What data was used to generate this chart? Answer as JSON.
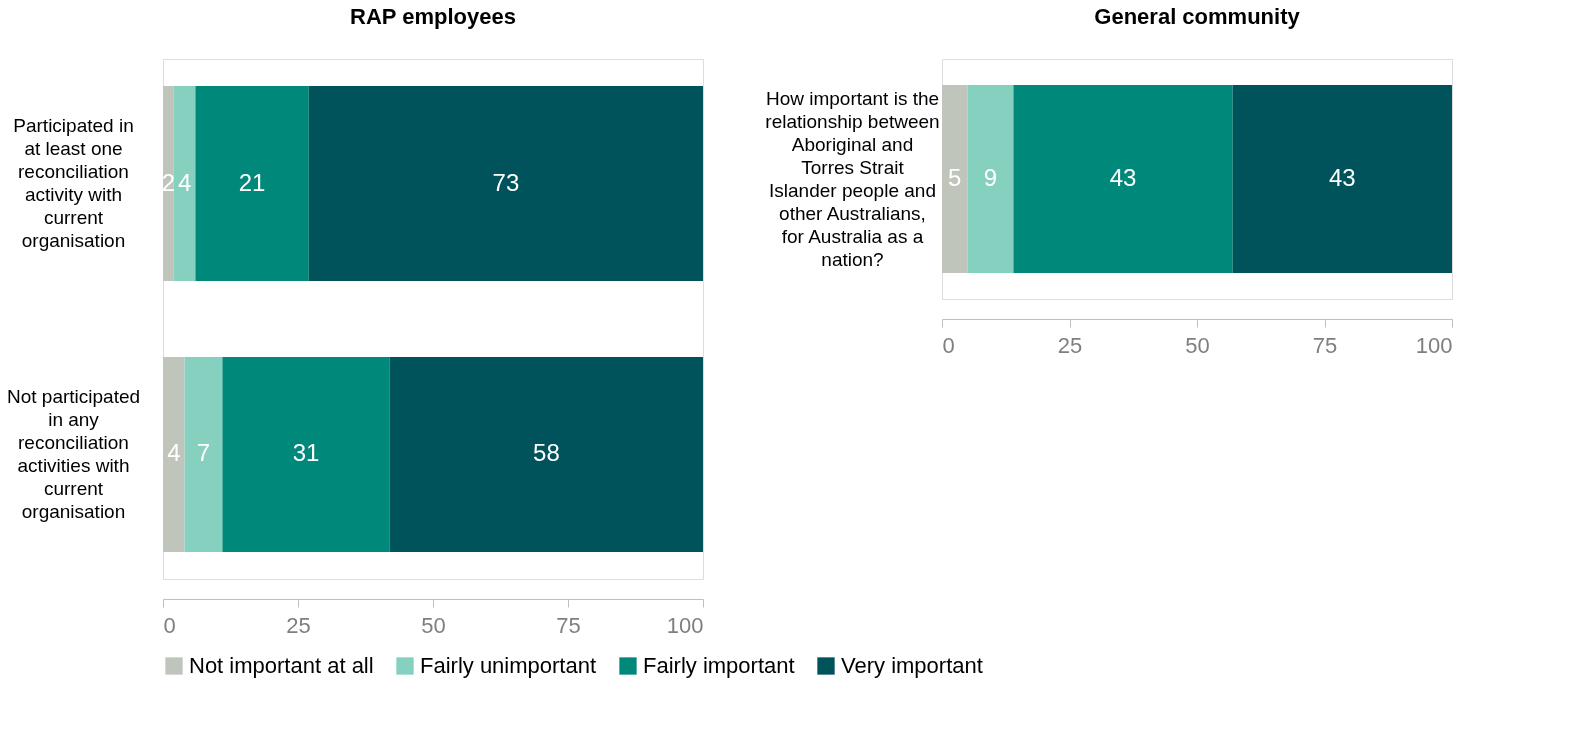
{
  "chart_data": [
    {
      "type": "bar",
      "orientation": "horizontal",
      "stacked": true,
      "title": "RAP employees",
      "categories": [
        "Participated in at least one reconciliation activity with current organisation",
        "Not participated in any reconciliation activities with current organisation"
      ],
      "series": [
        {
          "name": "Not important at all",
          "color": "#bfc5bb",
          "values": [
            2,
            4
          ]
        },
        {
          "name": "Fairly unimportant",
          "color": "#86d0c0",
          "values": [
            4,
            7
          ]
        },
        {
          "name": "Fairly important",
          "color": "#00897b",
          "values": [
            21,
            31
          ]
        },
        {
          "name": "Very important",
          "color": "#00535b",
          "values": [
            73,
            58
          ]
        }
      ],
      "xlim": [
        0,
        100
      ],
      "xticks": [
        0,
        25,
        50,
        75,
        100
      ],
      "data_labels": true,
      "grid": false,
      "legend": "bottom"
    },
    {
      "type": "bar",
      "orientation": "horizontal",
      "stacked": true,
      "title": "General community",
      "categories": [
        "How important is the relationship between Aboriginal and Torres Strait Islander people and other Australians, for Australia as a nation?"
      ],
      "series": [
        {
          "name": "Not important at all",
          "color": "#bfc5bb",
          "values": [
            5
          ]
        },
        {
          "name": "Fairly unimportant",
          "color": "#86d0c0",
          "values": [
            9
          ]
        },
        {
          "name": "Fairly important",
          "color": "#00897b",
          "values": [
            43
          ]
        },
        {
          "name": "Very important",
          "color": "#00535b",
          "values": [
            43
          ]
        }
      ],
      "xlim": [
        0,
        100
      ],
      "xticks": [
        0,
        25,
        50,
        75,
        100
      ],
      "data_labels": true,
      "grid": false
    }
  ]
}
